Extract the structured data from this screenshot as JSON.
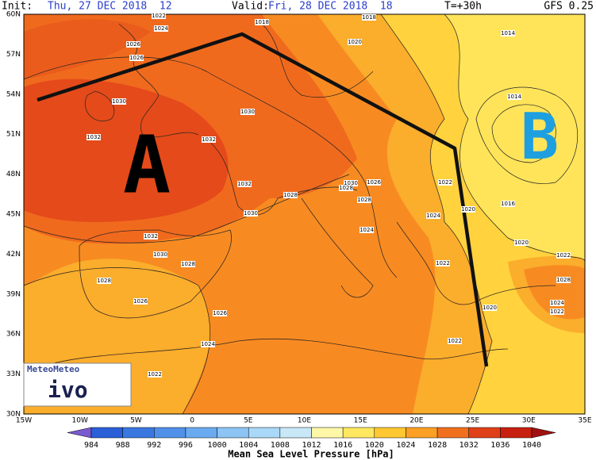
{
  "header": {
    "init_label": "Init:",
    "init": "Thu, 27 DEC 2018  12",
    "valid_label": "Valid:",
    "valid": "Fri, 28 DEC 2018  18",
    "lead": "T=+30h",
    "model": "GFS 0.25"
  },
  "map": {
    "lat_labels": [
      "60N",
      "57N",
      "54N",
      "51N",
      "48N",
      "45N",
      "42N",
      "39N",
      "36N",
      "33N",
      "30N"
    ],
    "lon_labels": [
      "15W",
      "10W",
      "5W",
      "0",
      "5E",
      "10E",
      "15E",
      "20E",
      "25E",
      "30E",
      "35E"
    ],
    "isobar_labels": [
      "1022",
      "1024",
      "1026",
      "1026",
      "1030",
      "1032",
      "1032",
      "1032",
      "1032",
      "1030",
      "1028",
      "1028",
      "1026",
      "1026",
      "1024",
      "1022",
      "1018",
      "1020",
      "1014",
      "1014",
      "1016",
      "1020",
      "1022",
      "1028",
      "1024",
      "1022",
      "1020",
      "1022",
      "1022",
      "1024",
      "1020",
      "1022",
      "1026",
      "1030",
      "1028",
      "1028",
      "1024",
      "1028",
      "1030",
      "1030",
      "1018"
    ],
    "annotations": {
      "high": "A",
      "low": "B"
    },
    "logo": [
      "MeteoMeteo",
      "ivo"
    ]
  },
  "colorbar": {
    "levels": [
      984,
      988,
      992,
      996,
      1000,
      1004,
      1008,
      1012,
      1016,
      1020,
      1024,
      1028,
      1032,
      1036,
      1040
    ],
    "colors": [
      "#2a5fd8",
      "#3a78e0",
      "#5090e8",
      "#6aaaf0",
      "#8cc4f4",
      "#aad8f8",
      "#c8e8f8",
      "#fff7a8",
      "#ffe860",
      "#ffc830",
      "#fba025",
      "#f07020",
      "#e04018",
      "#c82010"
    ],
    "under_color": "#7a5ad0",
    "over_color": "#a01010",
    "label": "Mean Sea Level Pressure [hPa]"
  }
}
